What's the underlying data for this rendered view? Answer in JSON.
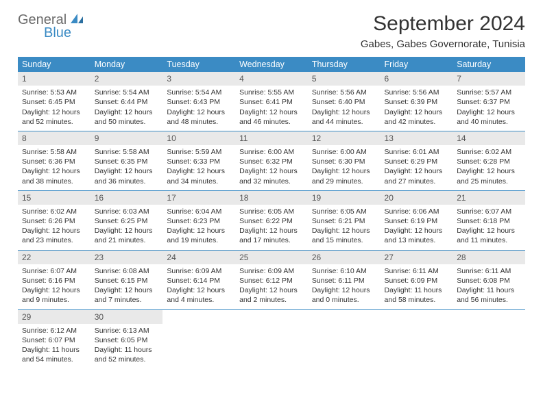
{
  "logo": {
    "word1": "General",
    "word2": "Blue"
  },
  "title": "September 2024",
  "location": "Gabes, Gabes Governorate, Tunisia",
  "colors": {
    "header_bg": "#3b8bc4",
    "header_fg": "#ffffff",
    "daynum_bg": "#e9e9e9",
    "border": "#3b8bc4",
    "text": "#333333",
    "logo_gray": "#6b6b6b",
    "logo_blue": "#3b8bc4"
  },
  "weekdays": [
    "Sunday",
    "Monday",
    "Tuesday",
    "Wednesday",
    "Thursday",
    "Friday",
    "Saturday"
  ],
  "weeks": [
    [
      {
        "n": "1",
        "sr": "Sunrise: 5:53 AM",
        "ss": "Sunset: 6:45 PM",
        "d1": "Daylight: 12 hours",
        "d2": "and 52 minutes."
      },
      {
        "n": "2",
        "sr": "Sunrise: 5:54 AM",
        "ss": "Sunset: 6:44 PM",
        "d1": "Daylight: 12 hours",
        "d2": "and 50 minutes."
      },
      {
        "n": "3",
        "sr": "Sunrise: 5:54 AM",
        "ss": "Sunset: 6:43 PM",
        "d1": "Daylight: 12 hours",
        "d2": "and 48 minutes."
      },
      {
        "n": "4",
        "sr": "Sunrise: 5:55 AM",
        "ss": "Sunset: 6:41 PM",
        "d1": "Daylight: 12 hours",
        "d2": "and 46 minutes."
      },
      {
        "n": "5",
        "sr": "Sunrise: 5:56 AM",
        "ss": "Sunset: 6:40 PM",
        "d1": "Daylight: 12 hours",
        "d2": "and 44 minutes."
      },
      {
        "n": "6",
        "sr": "Sunrise: 5:56 AM",
        "ss": "Sunset: 6:39 PM",
        "d1": "Daylight: 12 hours",
        "d2": "and 42 minutes."
      },
      {
        "n": "7",
        "sr": "Sunrise: 5:57 AM",
        "ss": "Sunset: 6:37 PM",
        "d1": "Daylight: 12 hours",
        "d2": "and 40 minutes."
      }
    ],
    [
      {
        "n": "8",
        "sr": "Sunrise: 5:58 AM",
        "ss": "Sunset: 6:36 PM",
        "d1": "Daylight: 12 hours",
        "d2": "and 38 minutes."
      },
      {
        "n": "9",
        "sr": "Sunrise: 5:58 AM",
        "ss": "Sunset: 6:35 PM",
        "d1": "Daylight: 12 hours",
        "d2": "and 36 minutes."
      },
      {
        "n": "10",
        "sr": "Sunrise: 5:59 AM",
        "ss": "Sunset: 6:33 PM",
        "d1": "Daylight: 12 hours",
        "d2": "and 34 minutes."
      },
      {
        "n": "11",
        "sr": "Sunrise: 6:00 AM",
        "ss": "Sunset: 6:32 PM",
        "d1": "Daylight: 12 hours",
        "d2": "and 32 minutes."
      },
      {
        "n": "12",
        "sr": "Sunrise: 6:00 AM",
        "ss": "Sunset: 6:30 PM",
        "d1": "Daylight: 12 hours",
        "d2": "and 29 minutes."
      },
      {
        "n": "13",
        "sr": "Sunrise: 6:01 AM",
        "ss": "Sunset: 6:29 PM",
        "d1": "Daylight: 12 hours",
        "d2": "and 27 minutes."
      },
      {
        "n": "14",
        "sr": "Sunrise: 6:02 AM",
        "ss": "Sunset: 6:28 PM",
        "d1": "Daylight: 12 hours",
        "d2": "and 25 minutes."
      }
    ],
    [
      {
        "n": "15",
        "sr": "Sunrise: 6:02 AM",
        "ss": "Sunset: 6:26 PM",
        "d1": "Daylight: 12 hours",
        "d2": "and 23 minutes."
      },
      {
        "n": "16",
        "sr": "Sunrise: 6:03 AM",
        "ss": "Sunset: 6:25 PM",
        "d1": "Daylight: 12 hours",
        "d2": "and 21 minutes."
      },
      {
        "n": "17",
        "sr": "Sunrise: 6:04 AM",
        "ss": "Sunset: 6:23 PM",
        "d1": "Daylight: 12 hours",
        "d2": "and 19 minutes."
      },
      {
        "n": "18",
        "sr": "Sunrise: 6:05 AM",
        "ss": "Sunset: 6:22 PM",
        "d1": "Daylight: 12 hours",
        "d2": "and 17 minutes."
      },
      {
        "n": "19",
        "sr": "Sunrise: 6:05 AM",
        "ss": "Sunset: 6:21 PM",
        "d1": "Daylight: 12 hours",
        "d2": "and 15 minutes."
      },
      {
        "n": "20",
        "sr": "Sunrise: 6:06 AM",
        "ss": "Sunset: 6:19 PM",
        "d1": "Daylight: 12 hours",
        "d2": "and 13 minutes."
      },
      {
        "n": "21",
        "sr": "Sunrise: 6:07 AM",
        "ss": "Sunset: 6:18 PM",
        "d1": "Daylight: 12 hours",
        "d2": "and 11 minutes."
      }
    ],
    [
      {
        "n": "22",
        "sr": "Sunrise: 6:07 AM",
        "ss": "Sunset: 6:16 PM",
        "d1": "Daylight: 12 hours",
        "d2": "and 9 minutes."
      },
      {
        "n": "23",
        "sr": "Sunrise: 6:08 AM",
        "ss": "Sunset: 6:15 PM",
        "d1": "Daylight: 12 hours",
        "d2": "and 7 minutes."
      },
      {
        "n": "24",
        "sr": "Sunrise: 6:09 AM",
        "ss": "Sunset: 6:14 PM",
        "d1": "Daylight: 12 hours",
        "d2": "and 4 minutes."
      },
      {
        "n": "25",
        "sr": "Sunrise: 6:09 AM",
        "ss": "Sunset: 6:12 PM",
        "d1": "Daylight: 12 hours",
        "d2": "and 2 minutes."
      },
      {
        "n": "26",
        "sr": "Sunrise: 6:10 AM",
        "ss": "Sunset: 6:11 PM",
        "d1": "Daylight: 12 hours",
        "d2": "and 0 minutes."
      },
      {
        "n": "27",
        "sr": "Sunrise: 6:11 AM",
        "ss": "Sunset: 6:09 PM",
        "d1": "Daylight: 11 hours",
        "d2": "and 58 minutes."
      },
      {
        "n": "28",
        "sr": "Sunrise: 6:11 AM",
        "ss": "Sunset: 6:08 PM",
        "d1": "Daylight: 11 hours",
        "d2": "and 56 minutes."
      }
    ],
    [
      {
        "n": "29",
        "sr": "Sunrise: 6:12 AM",
        "ss": "Sunset: 6:07 PM",
        "d1": "Daylight: 11 hours",
        "d2": "and 54 minutes."
      },
      {
        "n": "30",
        "sr": "Sunrise: 6:13 AM",
        "ss": "Sunset: 6:05 PM",
        "d1": "Daylight: 11 hours",
        "d2": "and 52 minutes."
      },
      null,
      null,
      null,
      null,
      null
    ]
  ]
}
